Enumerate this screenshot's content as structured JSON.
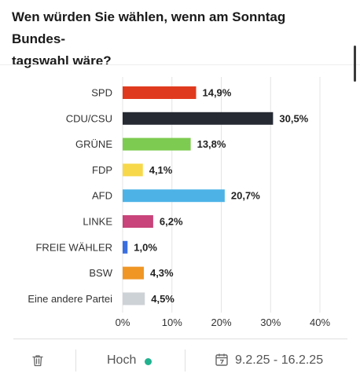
{
  "question": "Wen würden Sie wählen, wenn am Sonntag Bundes-tagswahl wäre?",
  "question_line1": "Wen würden Sie wählen, wenn am Sonntag Bundes-",
  "question_line2": "tagswahl wäre?",
  "chart_data": {
    "type": "bar",
    "orientation": "horizontal",
    "categories": [
      "SPD",
      "CDU/CSU",
      "GRÜNE",
      "FDP",
      "AFD",
      "LINKE",
      "FREIE WÄHLER",
      "BSW",
      "Eine andere Partei"
    ],
    "values": [
      14.9,
      30.5,
      13.8,
      4.1,
      20.7,
      6.2,
      1.0,
      4.3,
      4.5
    ],
    "value_labels": [
      "14,9%",
      "30,5%",
      "13,8%",
      "4,1%",
      "20,7%",
      "6,2%",
      "1,0%",
      "4,3%",
      "4,5%"
    ],
    "colors": [
      "#e03a1e",
      "#262a33",
      "#7dcb50",
      "#f7d84a",
      "#4db3e6",
      "#c8447a",
      "#3a6fe0",
      "#ef9625",
      "#cdd2d6"
    ],
    "xlim": [
      0,
      40
    ],
    "xticks": [
      0,
      10,
      20,
      30,
      40
    ],
    "xtick_labels": [
      "0%",
      "10%",
      "20%",
      "30%",
      "40%"
    ],
    "grid": true
  },
  "footer": {
    "trash_icon": "trash-icon",
    "confidence_label": "Hoch",
    "confidence_color": "#21b28f",
    "calendar_icon": "calendar-icon",
    "date_range": "9.2.25 - 16.2.25"
  }
}
